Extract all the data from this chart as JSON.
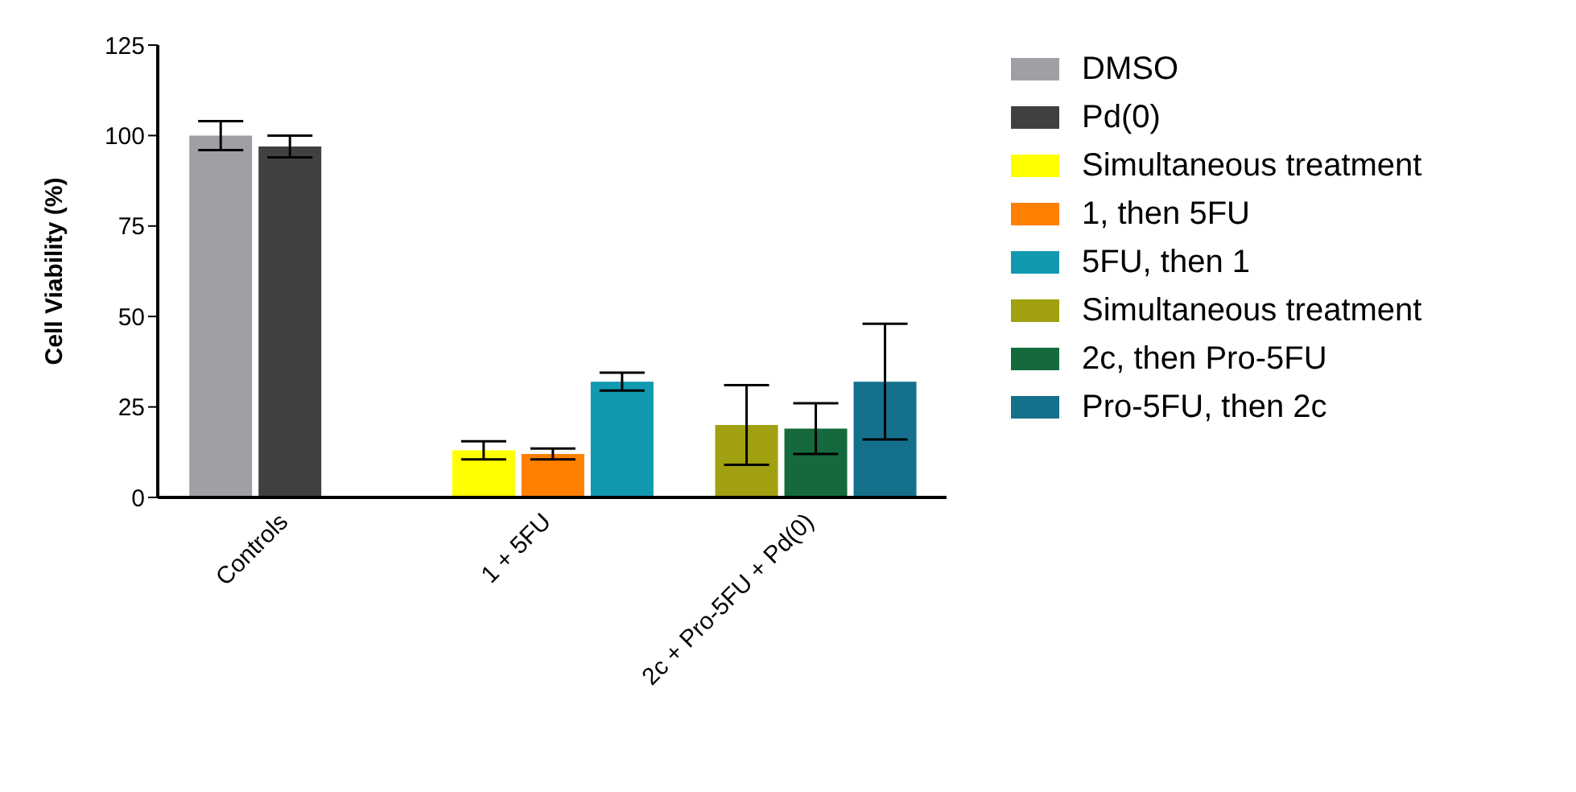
{
  "chart_data": {
    "type": "bar",
    "ylabel": "Cell Viability (%)",
    "categories": [
      "Controls",
      "1 + 5FU",
      "2c + Pro-5FU + Pd(0)"
    ],
    "series": [
      {
        "name": "DMSO",
        "color": "#a0a0a4",
        "values": [
          100,
          null,
          null
        ],
        "errors": [
          4,
          null,
          null
        ]
      },
      {
        "name": "Pd(0)",
        "color": "#404040",
        "values": [
          97,
          null,
          null
        ],
        "errors": [
          3,
          null,
          null
        ]
      },
      {
        "name": "Simultaneous treatment",
        "color": "#ffff00",
        "values": [
          null,
          13,
          null
        ],
        "errors": [
          null,
          2.5,
          null
        ]
      },
      {
        "name": "1, then 5FU",
        "color": "#ff8000",
        "values": [
          null,
          12,
          null
        ],
        "errors": [
          null,
          1.5,
          null
        ]
      },
      {
        "name": "5FU, then 1",
        "color": "#1199b0",
        "values": [
          null,
          32,
          null
        ],
        "errors": [
          null,
          2.5,
          null
        ]
      },
      {
        "name": "Simultaneous treatment",
        "color": "#a0a010",
        "values": [
          null,
          null,
          20
        ],
        "errors": [
          null,
          null,
          11
        ]
      },
      {
        "name": "2c, then Pro-5FU",
        "color": "#146a3c",
        "values": [
          null,
          null,
          19
        ],
        "errors": [
          null,
          null,
          7
        ]
      },
      {
        "name": "Pro-5FU, then 2c",
        "color": "#15708c",
        "values": [
          null,
          null,
          32
        ],
        "errors": [
          null,
          null,
          16
        ]
      }
    ],
    "ylim": [
      0,
      125
    ],
    "yticks": [
      0,
      25,
      50,
      75,
      100,
      125
    ],
    "legend": "right"
  }
}
